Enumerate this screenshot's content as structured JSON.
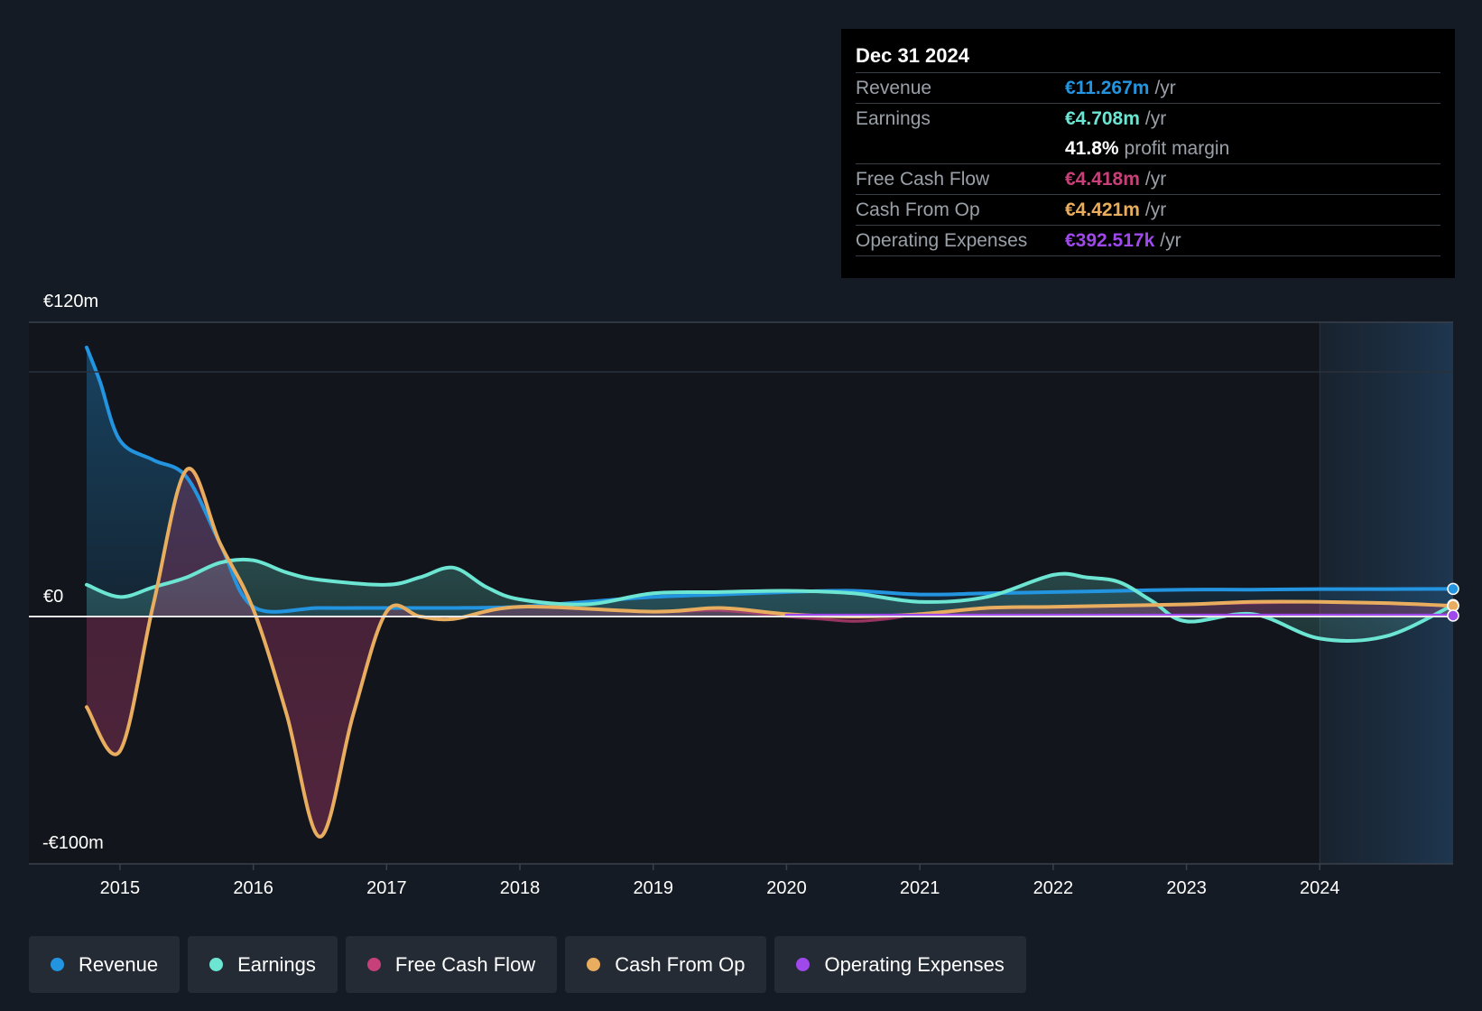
{
  "chart_data": {
    "type": "line",
    "title": "",
    "y_axis": {
      "top_label": "€120m",
      "zero_label": "€0",
      "bottom_label": "-€100m",
      "ylim": [
        -100,
        120
      ]
    },
    "x_ticks": [
      "2015",
      "2016",
      "2017",
      "2018",
      "2019",
      "2020",
      "2021",
      "2022",
      "2023",
      "2024"
    ],
    "xlim": [
      2014.75,
      2025.0
    ],
    "highlight_start": 2024.0,
    "series": [
      {
        "name": "Revenue",
        "color": "#2394df",
        "fill": true,
        "x": [
          2014.75,
          2014.85,
          2015.0,
          2015.25,
          2015.5,
          2015.75,
          2016.0,
          2016.5,
          2017.0,
          2017.5,
          2018.0,
          2018.5,
          2019.0,
          2019.5,
          2020.0,
          2020.5,
          2021.0,
          2021.5,
          2022.0,
          2022.5,
          2023.0,
          2023.5,
          2024.0,
          2024.5,
          2025.0
        ],
        "values": [
          110,
          96,
          72,
          64,
          57,
          30,
          4,
          3.5,
          3.5,
          3.5,
          4,
          6,
          8,
          9,
          10,
          10.5,
          9,
          9.5,
          10,
          10.5,
          11,
          11,
          11.2,
          11.2,
          11.3
        ]
      },
      {
        "name": "Earnings",
        "color": "#6ce5d3",
        "fill": true,
        "x": [
          2014.75,
          2015.0,
          2015.25,
          2015.5,
          2015.75,
          2016.0,
          2016.25,
          2016.5,
          2017.0,
          2017.25,
          2017.5,
          2017.75,
          2018.0,
          2018.5,
          2019.0,
          2019.5,
          2020.0,
          2020.5,
          2021.0,
          2021.5,
          2022.0,
          2022.25,
          2022.5,
          2022.75,
          2023.0,
          2023.5,
          2024.0,
          2024.5,
          2025.0
        ],
        "values": [
          13,
          8,
          12,
          16,
          22,
          23,
          18,
          15,
          13,
          16,
          20,
          12,
          7,
          5,
          9.5,
          10,
          10.5,
          9.5,
          6,
          8,
          17,
          16,
          14,
          6,
          -2,
          1,
          -9,
          -8,
          4.7
        ]
      },
      {
        "name": "Free Cash Flow",
        "color": "#c7407a",
        "fill": true,
        "x": [
          2014.75,
          2015.0,
          2015.25,
          2015.5,
          2015.75,
          2016.0,
          2016.25,
          2016.5,
          2016.75,
          2017.0,
          2017.25,
          2017.5,
          2018.0,
          2019.0,
          2019.5,
          2020.0,
          2020.25,
          2020.5,
          2020.75,
          2021.0,
          2021.5,
          2022.0,
          2023.0,
          2024.0,
          2024.5,
          2025.0
        ],
        "values": [
          -37,
          -55,
          5,
          60,
          30,
          3,
          -40,
          -90,
          -40,
          2,
          0,
          -1,
          4,
          2,
          2.5,
          0,
          -1,
          -2,
          -1,
          1,
          3.5,
          4,
          5,
          6,
          5.5,
          4.4
        ]
      },
      {
        "name": "Cash From Op",
        "color": "#e8ad5e",
        "fill": false,
        "x": [
          2014.75,
          2015.0,
          2015.25,
          2015.5,
          2015.75,
          2016.0,
          2016.25,
          2016.5,
          2016.75,
          2017.0,
          2017.25,
          2017.5,
          2018.0,
          2019.0,
          2019.5,
          2020.0,
          2020.5,
          2021.0,
          2021.5,
          2022.0,
          2023.0,
          2023.5,
          2024.0,
          2024.5,
          2025.0
        ],
        "values": [
          -37,
          -55,
          5,
          60,
          30,
          3,
          -40,
          -90,
          -40,
          2,
          0,
          -1,
          4,
          2,
          3.5,
          1,
          0,
          1,
          3.5,
          4,
          5,
          6,
          6,
          5.5,
          4.4
        ]
      },
      {
        "name": "Operating Expenses",
        "color": "#9f48eb",
        "fill": false,
        "x": [
          2020.0,
          2021.0,
          2022.0,
          2023.0,
          2024.0,
          2025.0
        ],
        "values": [
          0.4,
          0.4,
          0.4,
          0.4,
          0.4,
          0.39
        ]
      }
    ]
  },
  "tooltip": {
    "date": "Dec 31 2024",
    "rows": [
      {
        "label": "Revenue",
        "value": "€11.267m",
        "unit": "/yr",
        "color": "#2394df"
      },
      {
        "label": "Earnings",
        "value": "€4.708m",
        "unit": "/yr",
        "color": "#6ce5d3"
      },
      {
        "label": "",
        "value": "41.8%",
        "unit": "profit margin",
        "color": "#ffffff"
      },
      {
        "label": "Free Cash Flow",
        "value": "€4.418m",
        "unit": "/yr",
        "color": "#c7407a"
      },
      {
        "label": "Cash From Op",
        "value": "€4.421m",
        "unit": "/yr",
        "color": "#e8ad5e"
      },
      {
        "label": "Operating Expenses",
        "value": "€392.517k",
        "unit": "/yr",
        "color": "#9f48eb"
      }
    ]
  },
  "legend": [
    {
      "label": "Revenue",
      "color": "#2394df"
    },
    {
      "label": "Earnings",
      "color": "#6ce5d3"
    },
    {
      "label": "Free Cash Flow",
      "color": "#c7407a"
    },
    {
      "label": "Cash From Op",
      "color": "#e8ad5e"
    },
    {
      "label": "Operating Expenses",
      "color": "#9f48eb"
    }
  ]
}
